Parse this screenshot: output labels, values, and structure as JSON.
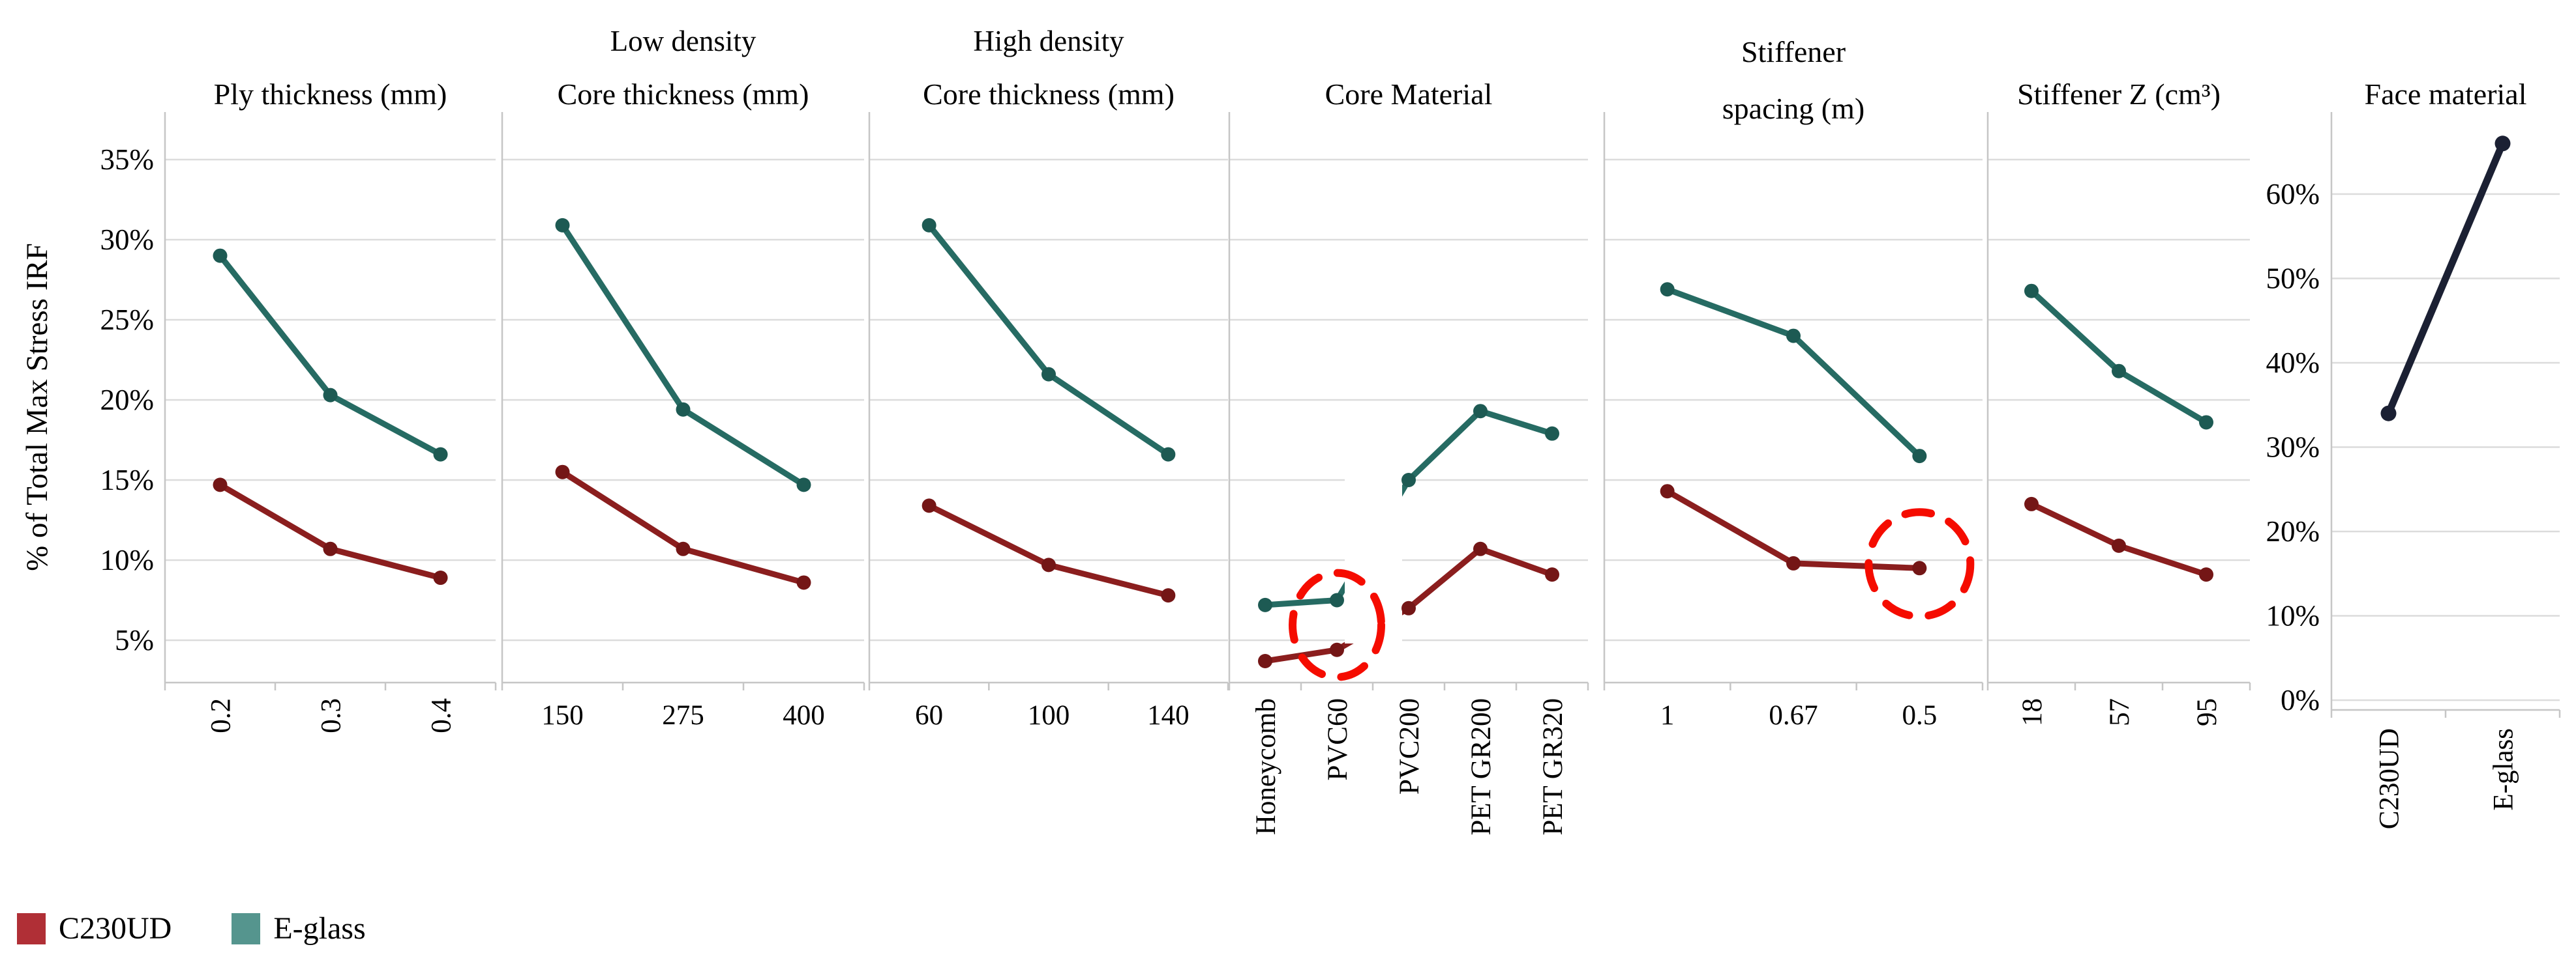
{
  "page": {
    "background": "#ffffff"
  },
  "ylabel": "% of Total Max Stress IRF",
  "legend": {
    "items": [
      {
        "label": "C230UD",
        "swatch": "#b02f36"
      },
      {
        "label": "E-glass",
        "swatch": "#55958e"
      }
    ]
  },
  "colors": {
    "c230ud_line": "#8b1e1e",
    "c230ud_marker": "#741616",
    "eglass_line": "#266b63",
    "eglass_marker": "#1d5a53",
    "face_line": "#1b2033",
    "grid": "#dcdcdc",
    "axis": "#c6c6c6",
    "annotation": "#f50c00",
    "text": "#000000"
  },
  "shared_axis": {
    "ticks": [
      {
        "label": "35%",
        "value": 35
      },
      {
        "label": "30%",
        "value": 30
      },
      {
        "label": "25%",
        "value": 25
      },
      {
        "label": "20%",
        "value": 20
      },
      {
        "label": "15%",
        "value": 15
      },
      {
        "label": "10%",
        "value": 10
      },
      {
        "label": "5%",
        "value": 5
      }
    ]
  },
  "chart_data": {
    "type": "line",
    "ylabel": "% of Total Max Stress IRF",
    "series_names": [
      "C230UD",
      "E-glass"
    ],
    "panels": [
      {
        "id": "ply-thickness",
        "title": "Ply thickness (mm)",
        "categories": [
          "0.2",
          "0.3",
          "0.4"
        ],
        "rotated_ticks": true,
        "series": [
          {
            "name": "C230UD",
            "values": [
              14.7,
              10.7,
              8.9
            ]
          },
          {
            "name": "E-glass",
            "values": [
              29.0,
              20.3,
              16.6
            ]
          }
        ]
      },
      {
        "id": "core-thickness-low-density",
        "supertitle": "Low density",
        "title": "Core thickness (mm)",
        "categories": [
          "150",
          "275",
          "400"
        ],
        "rotated_ticks": false,
        "series": [
          {
            "name": "C230UD",
            "values": [
              15.5,
              10.7,
              8.6
            ]
          },
          {
            "name": "E-glass",
            "values": [
              30.9,
              19.4,
              14.7
            ]
          }
        ]
      },
      {
        "id": "core-thickness-high-density",
        "supertitle": "High density",
        "title": "Core thickness (mm)",
        "categories": [
          "60",
          "100",
          "140"
        ],
        "rotated_ticks": false,
        "series": [
          {
            "name": "C230UD",
            "values": [
              13.4,
              9.7,
              7.8
            ]
          },
          {
            "name": "E-glass",
            "values": [
              30.9,
              21.6,
              16.6
            ]
          }
        ]
      },
      {
        "id": "core-material",
        "title": "Core Material",
        "categories": [
          "Honeycomb",
          "PVC60",
          "PVC200",
          "PET GR200",
          "PET GR320"
        ],
        "rotated_ticks": true,
        "series": [
          {
            "name": "C230UD",
            "values": [
              3.7,
              4.4,
              7.0,
              10.7,
              9.1
            ]
          },
          {
            "name": "E-glass",
            "values": [
              7.2,
              7.5,
              15.0,
              19.3,
              17.9
            ]
          }
        ],
        "annotation": {
          "type": "dashed-circle",
          "category": "PVC60"
        }
      },
      {
        "id": "stiffener-spacing",
        "title_lines": [
          "Stiffener",
          "spacing (m)"
        ],
        "categories": [
          "1",
          "0.67",
          "0.5"
        ],
        "rotated_ticks": false,
        "series": [
          {
            "name": "C230UD",
            "values": [
              14.3,
              9.8,
              9.5
            ]
          },
          {
            "name": "E-glass",
            "values": [
              26.9,
              24.0,
              16.5
            ]
          }
        ],
        "annotation": {
          "type": "dashed-circle",
          "category": "0.5",
          "series": "C230UD"
        }
      },
      {
        "id": "stiffener-z",
        "title": "Stiffener Z (cm³)",
        "categories": [
          "18",
          "57",
          "95"
        ],
        "rotated_ticks": true,
        "series": [
          {
            "name": "C230UD",
            "values": [
              13.5,
              10.9,
              9.1
            ]
          },
          {
            "name": "E-glass",
            "values": [
              26.8,
              21.8,
              18.6
            ]
          }
        ]
      },
      {
        "id": "face-material",
        "title": "Face material",
        "categories": [
          "C230UD",
          "E-glass"
        ],
        "rotated_ticks": true,
        "y_axis": {
          "ticks": [
            {
              "label": "60%",
              "value": 60
            },
            {
              "label": "50%",
              "value": 50
            },
            {
              "label": "40%",
              "value": 40
            },
            {
              "label": "30%",
              "value": 30
            },
            {
              "label": "20%",
              "value": 20
            },
            {
              "label": "10%",
              "value": 10
            },
            {
              "label": "0%",
              "value": 0
            }
          ]
        },
        "series": [
          {
            "name": "Face material",
            "values": [
              34.0,
              66.0
            ],
            "color_key": "face_line"
          }
        ]
      }
    ]
  }
}
